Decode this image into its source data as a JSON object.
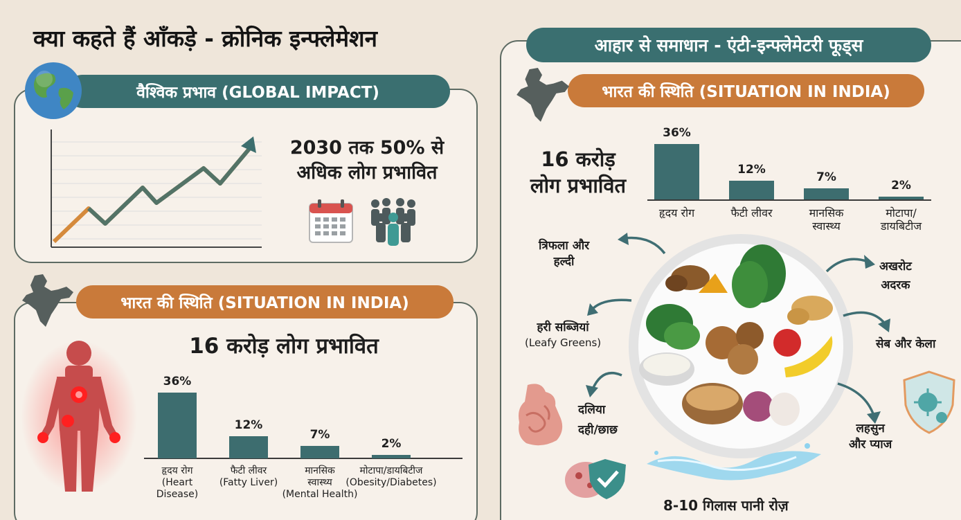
{
  "title": "क्या कहते हैं आँकड़े - क्रोनिक इन्फ्लेमेशन",
  "right_title": "आहार से समाधान - एंटी-इन्फ्लेमेटरी फूड्स",
  "global": {
    "heading": "वैश्विक प्रभाव (GLOBAL IMPACT)",
    "stat_line1": "2030 तक 50% से",
    "stat_line2": "अधिक लोग प्रभावित"
  },
  "india_left": {
    "heading": "भारत की स्थिति (SITUATION IN INDIA)",
    "stat": "16 करोड़ लोग प्रभावित",
    "bars": [
      {
        "value": "36%",
        "label": "हृदय रोग",
        "sub": "(Heart Disease)",
        "sub_line2": "Disease)",
        "sub_line1": "(Heart"
      },
      {
        "value": "12%",
        "label": "फैटी लीवर",
        "sub": "(Fatty Liver)"
      },
      {
        "value": "7%",
        "label": "मानसिक",
        "label2": "स्वास्थ्य",
        "sub": "(Mental Health)"
      },
      {
        "value": "2%",
        "label": "मोटापा/डायबिटीज",
        "sub": "(Obesity/Diabetes)"
      }
    ]
  },
  "india_right": {
    "heading": "भारत की स्थिति (SITUATION IN INDIA)",
    "stat_line1": "16 करोड़",
    "stat_line2": "लोग प्रभावित",
    "bars": [
      {
        "value": "36%",
        "label": "हृदय रोग"
      },
      {
        "value": "12%",
        "label": "फैटी लीवर"
      },
      {
        "value": "7%",
        "label": "मानसिक",
        "label2": "स्वास्थ्य"
      },
      {
        "value": "2%",
        "label": "मोटापा/",
        "label2": "डायबिटीज"
      }
    ]
  },
  "chart_data": [
    {
      "type": "bar",
      "categories": [
        "हृदय रोग (Heart Disease)",
        "फैटी लीवर (Fatty Liver)",
        "मानसिक स्वास्थ्य (Mental Health)",
        "मोटापा/डायबिटीज (Obesity/Diabetes)"
      ],
      "values": [
        36,
        12,
        7,
        2
      ],
      "ylim": [
        0,
        36
      ]
    },
    {
      "type": "bar",
      "categories": [
        "हृदय रोग",
        "फैटी लीवर",
        "मानसिक स्वास्थ्य",
        "मोटापा/डायबिटीज"
      ],
      "values": [
        36,
        12,
        7,
        2
      ],
      "ylim": [
        0,
        36
      ]
    }
  ],
  "foods": {
    "triphala_1": "त्रिफला और",
    "triphala_2": "हल्दी",
    "greens_1": "हरी सब्जियां",
    "greens_2": "(Leafy Greens)",
    "daliya": "दलिया",
    "dahi": "दही/छाछ",
    "walnut": "अखरोट",
    "ginger": "अदरक",
    "apple": "सेब और केला",
    "garlic_1": "लहसुन",
    "garlic_2": "और प्याज",
    "water": "8-10 गिलास पानी रोज़"
  },
  "colors": {
    "teal": "#3a6f70",
    "orange": "#c97a3a",
    "bar": "#3d6d6f",
    "background": "#efe6da"
  },
  "icons": [
    "globe-icon",
    "trend-chart-icon",
    "calendar-icon",
    "people-icon",
    "india-map-icon",
    "human-body-icon",
    "plate-icon",
    "intestine-icon",
    "shield-virus-icon",
    "water-splash-icon"
  ]
}
